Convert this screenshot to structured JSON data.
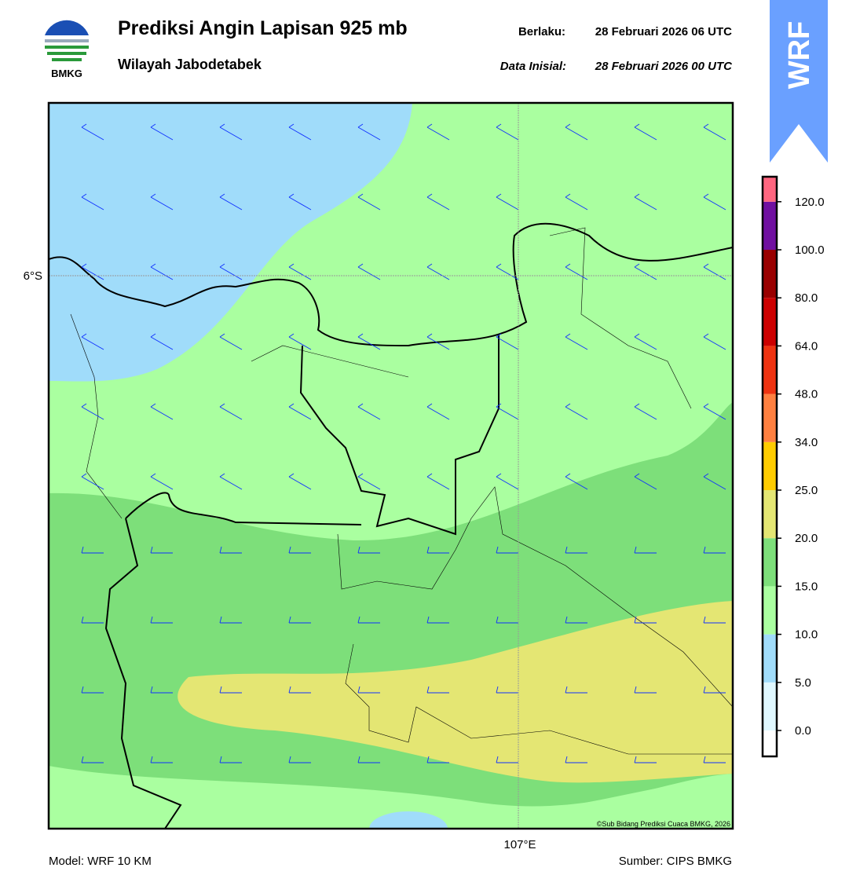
{
  "header": {
    "logo_text": "BMKG",
    "title": "Prediksi Angin Lapisan 925 mb",
    "subtitle": "Wilayah Jabodetabek",
    "valid_label": "Berlaku:",
    "valid_time": "28 Februari 2026 06 UTC",
    "init_label": "Data Inisial:",
    "init_time": "28 Februari 2026 00 UTC",
    "badge": "WRF"
  },
  "map": {
    "lat_label": "6°S",
    "lon_label": "107°E",
    "credit": "©Sub Bidang Prediksi Cuaca BMKG, 2026"
  },
  "colorbar": {
    "colors": [
      "#ffffff",
      "#e0f8ff",
      "#a0dcfa",
      "#aaffa0",
      "#7ddf7a",
      "#e4e673",
      "#ffcc00",
      "#ff8040",
      "#ee3311",
      "#cc0000",
      "#990000",
      "#7010a0",
      "#ff6680"
    ],
    "ticks": [
      {
        "value": 0,
        "label": "0.0"
      },
      {
        "value": 5,
        "label": "5.0"
      },
      {
        "value": 10,
        "label": "10.0"
      },
      {
        "value": 15,
        "label": "15.0"
      },
      {
        "value": 20,
        "label": "20.0"
      },
      {
        "value": 25,
        "label": "25.0"
      },
      {
        "value": 34,
        "label": "34.0"
      },
      {
        "value": 48,
        "label": "48.0"
      },
      {
        "value": 64,
        "label": "64.0"
      },
      {
        "value": 80,
        "label": "80.0"
      },
      {
        "value": 100,
        "label": "100.0"
      },
      {
        "value": 120,
        "label": "120.0"
      }
    ]
  },
  "footer": {
    "model": "Model: WRF 10 KM",
    "source": "Sumber: CIPS BMKG"
  }
}
